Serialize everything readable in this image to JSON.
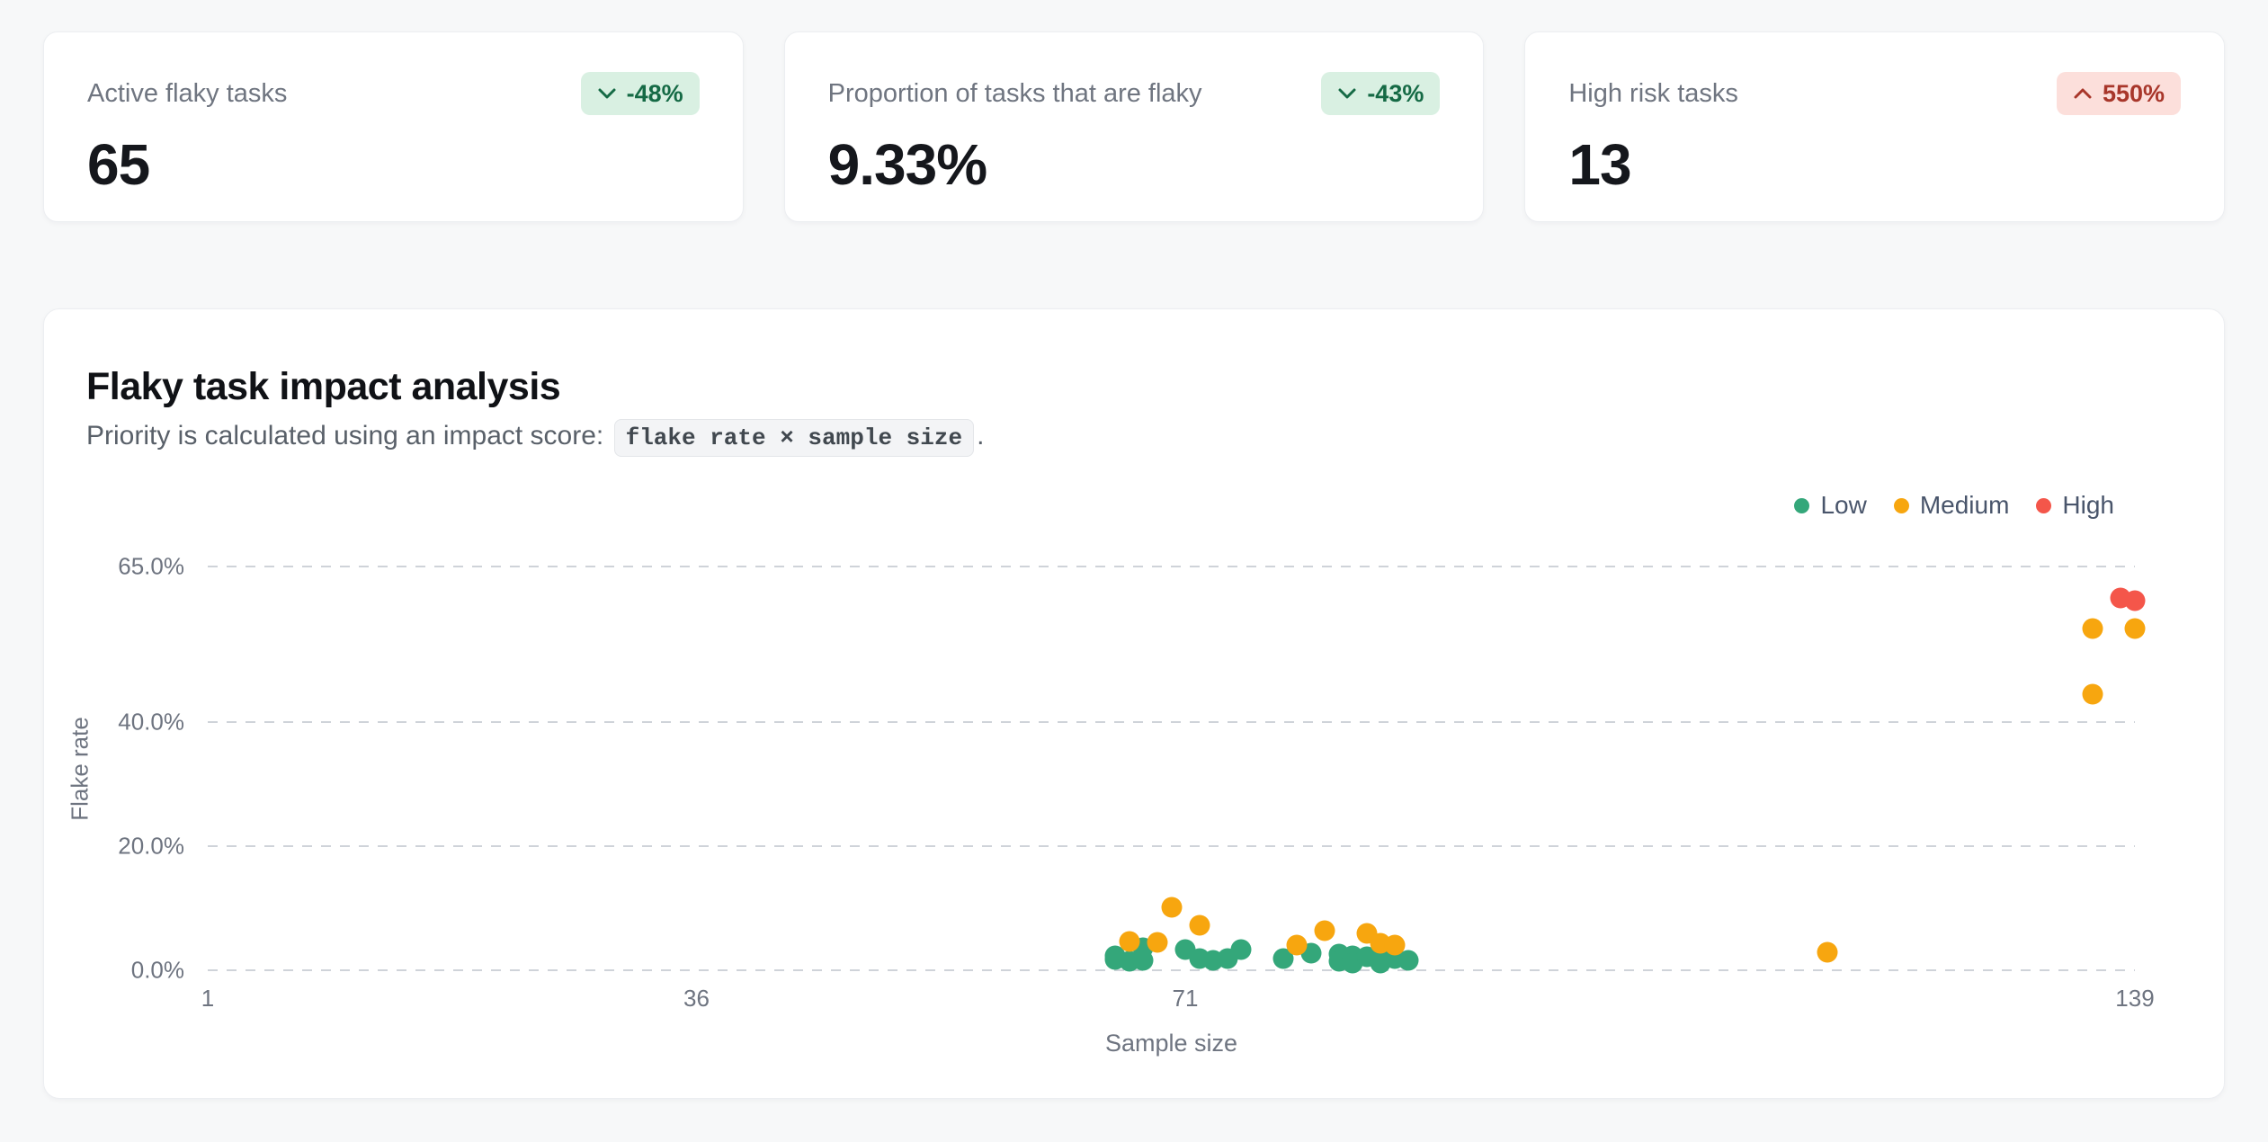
{
  "stats": [
    {
      "label": "Active flaky tasks",
      "value": "65",
      "delta": "-48%",
      "direction": "down",
      "tone": "positive"
    },
    {
      "label": "Proportion of tasks that are flaky",
      "value": "9.33%",
      "delta": "-43%",
      "direction": "down",
      "tone": "positive"
    },
    {
      "label": "High risk tasks",
      "value": "13",
      "delta": "550%",
      "direction": "up",
      "tone": "negative"
    }
  ],
  "chart_card": {
    "title": "Flaky task impact analysis",
    "subtitle_prefix": "Priority is calculated using an impact score: ",
    "subtitle_code": "flake rate × sample size",
    "subtitle_suffix": "."
  },
  "colors": {
    "low": "#34a77a",
    "medium": "#f7a60f",
    "high": "#f4564a",
    "badge_positive_bg": "#d9f0e2",
    "badge_positive_text": "#156a45",
    "badge_negative_bg": "#fcdfdb",
    "badge_negative_text": "#a8362a",
    "gridline": "#cfd3d9",
    "tick_text": "#6e7480"
  },
  "chart_data": {
    "type": "scatter",
    "title": "Flaky task impact analysis",
    "xlabel": "Sample size",
    "ylabel": "Flake rate",
    "xlim": [
      1,
      139
    ],
    "ylim": [
      0,
      65
    ],
    "x_ticks": [
      {
        "value": 1,
        "label": "1"
      },
      {
        "value": 36,
        "label": "36"
      },
      {
        "value": 71,
        "label": "71"
      },
      {
        "value": 139,
        "label": "139"
      }
    ],
    "y_ticks": [
      {
        "value": 0,
        "label": "0.0%"
      },
      {
        "value": 20,
        "label": "20.0%"
      },
      {
        "value": 40,
        "label": "40.0%"
      },
      {
        "value": 65,
        "label": "65.0%"
      }
    ],
    "grid": "horizontal-dashed",
    "legend_position": "top-right",
    "series": [
      {
        "name": "Low",
        "color": "#34a77a",
        "points": [
          [
            66,
            1.7
          ],
          [
            66,
            2.3
          ],
          [
            67,
            1.4
          ],
          [
            68,
            3.6
          ],
          [
            68,
            1.6
          ],
          [
            71,
            3.3
          ],
          [
            72,
            1.9
          ],
          [
            73,
            1.6
          ],
          [
            74,
            1.9
          ],
          [
            75,
            3.3
          ],
          [
            78,
            1.9
          ],
          [
            80,
            2.8
          ],
          [
            82,
            2.6
          ],
          [
            82,
            1.4
          ],
          [
            83,
            2.3
          ],
          [
            83,
            1.2
          ],
          [
            84,
            2.2
          ],
          [
            85,
            1.2
          ],
          [
            85,
            1.9
          ],
          [
            86,
            1.9
          ],
          [
            87,
            1.6
          ]
        ]
      },
      {
        "name": "Medium",
        "color": "#f7a60f",
        "points": [
          [
            67,
            4.7
          ],
          [
            69,
            4.5
          ],
          [
            70,
            10.1
          ],
          [
            72,
            7.3
          ],
          [
            79,
            4.1
          ],
          [
            81,
            6.4
          ],
          [
            84,
            5.9
          ],
          [
            85,
            4.3
          ],
          [
            86,
            4.1
          ],
          [
            117,
            2.9
          ],
          [
            136,
            55
          ],
          [
            136,
            44.5
          ],
          [
            139,
            55
          ]
        ]
      },
      {
        "name": "High",
        "color": "#f4564a",
        "points": [
          [
            138,
            60
          ],
          [
            139,
            59.5
          ]
        ]
      }
    ]
  }
}
